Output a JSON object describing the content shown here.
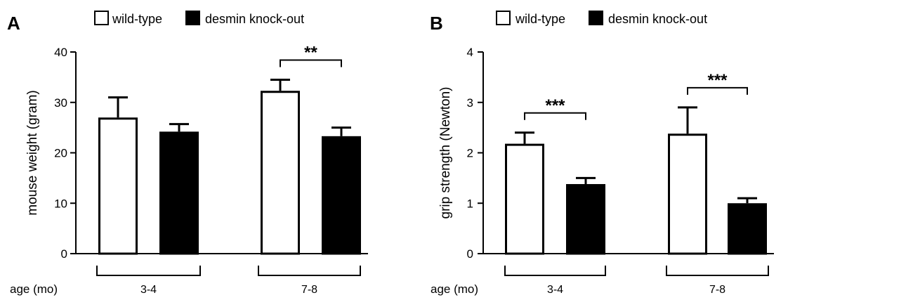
{
  "chart_data": [
    {
      "type": "bar",
      "panel": "A",
      "ylabel": "mouse weight (gram)",
      "ylim": [
        0,
        40
      ],
      "yticks": [
        0,
        10,
        20,
        30,
        40
      ],
      "group_axis_label": "age (mo)",
      "categories": [
        "3-4",
        "7-8"
      ],
      "series": [
        {
          "name": "wild-type",
          "fill": "#ffffff",
          "values": [
            27,
            32.3
          ],
          "errors": [
            4,
            2.2
          ]
        },
        {
          "name": "desmin knock-out",
          "fill": "#000000",
          "values": [
            24.2,
            23.3
          ],
          "errors": [
            1.5,
            1.7
          ]
        }
      ],
      "significance": [
        {
          "category_index": 1,
          "label": "**"
        }
      ]
    },
    {
      "type": "bar",
      "panel": "B",
      "ylabel": "grip strength (Newton)",
      "ylim": [
        0,
        4
      ],
      "yticks": [
        0,
        1,
        2,
        3,
        4
      ],
      "group_axis_label": "age (mo)",
      "categories": [
        "3-4",
        "7-8"
      ],
      "series": [
        {
          "name": "wild-type",
          "fill": "#ffffff",
          "values": [
            2.18,
            2.38
          ],
          "errors": [
            0.22,
            0.52
          ]
        },
        {
          "name": "desmin knock-out",
          "fill": "#000000",
          "values": [
            1.38,
            1.0
          ],
          "errors": [
            0.12,
            0.1
          ]
        }
      ],
      "significance": [
        {
          "category_index": 0,
          "label": "***"
        },
        {
          "category_index": 1,
          "label": "***"
        }
      ]
    }
  ]
}
